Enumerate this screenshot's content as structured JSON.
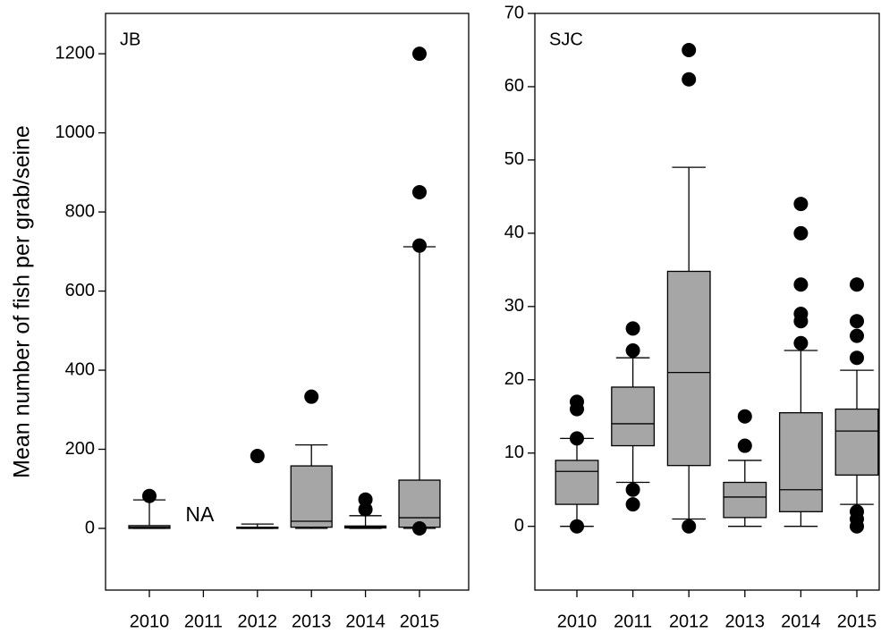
{
  "chart_data": [
    {
      "type": "box",
      "title": "JB",
      "ylabel": "Mean number of fish per grab/seine",
      "categories": [
        "2010",
        "2011",
        "2012",
        "2013",
        "2014",
        "2015"
      ],
      "color": "#a6a6a6",
      "outlier_color": "#000000",
      "boxes": [
        {
          "whisker_low": 0,
          "q1": 0,
          "median": 3,
          "q3": 7,
          "whisker_high": 72,
          "outliers": [
            82
          ]
        },
        null,
        {
          "whisker_low": 0,
          "q1": 0,
          "median": 1,
          "q3": 3,
          "whisker_high": 11,
          "outliers": [
            183
          ]
        },
        {
          "whisker_low": 0,
          "q1": 3,
          "median": 18,
          "q3": 158,
          "whisker_high": 211,
          "outliers": [
            333
          ]
        },
        {
          "whisker_low": 0,
          "q1": 1,
          "median": 3,
          "q3": 6,
          "whisker_high": 32,
          "outliers": [
            48,
            73
          ]
        },
        {
          "whisker_low": 0,
          "q1": 3,
          "median": 27,
          "q3": 122,
          "whisker_high": 712,
          "outliers": [
            0,
            715,
            850,
            1200
          ]
        }
      ],
      "annotations": [
        {
          "text": "NA"
        }
      ],
      "ylim": [
        -156,
        1302
      ],
      "yticks": [
        0,
        200,
        400,
        600,
        800,
        1000,
        1200
      ]
    },
    {
      "type": "box",
      "title": "SJC",
      "categories": [
        "2010",
        "2011",
        "2012",
        "2013",
        "2014",
        "2015"
      ],
      "color": "#a6a6a6",
      "outlier_color": "#000000",
      "boxes": [
        {
          "whisker_low": 0,
          "q1": 3,
          "median": 7.5,
          "q3": 9,
          "whisker_high": 12,
          "outliers": [
            0,
            12,
            16,
            17
          ]
        },
        {
          "whisker_low": 6,
          "q1": 11,
          "median": 14,
          "q3": 19,
          "whisker_high": 23,
          "outliers": [
            3,
            5,
            24,
            27
          ]
        },
        {
          "whisker_low": 1,
          "q1": 8.3,
          "median": 21,
          "q3": 34.8,
          "whisker_high": 49,
          "outliers": [
            0,
            61,
            65
          ]
        },
        {
          "whisker_low": 0,
          "q1": 1.2,
          "median": 4,
          "q3": 6,
          "whisker_high": 9,
          "outliers": [
            11,
            15
          ]
        },
        {
          "whisker_low": 0,
          "q1": 2,
          "median": 5,
          "q3": 15.5,
          "whisker_high": 24,
          "outliers": [
            25,
            28,
            29,
            33,
            40,
            44
          ]
        },
        {
          "whisker_low": 3,
          "q1": 7,
          "median": 13,
          "q3": 16,
          "whisker_high": 21.3,
          "outliers": [
            0,
            1,
            2,
            23,
            26,
            28,
            33
          ]
        }
      ],
      "ylim": [
        -8.7,
        70
      ],
      "yticks": [
        0,
        10,
        20,
        30,
        40,
        50,
        60,
        70
      ]
    }
  ]
}
